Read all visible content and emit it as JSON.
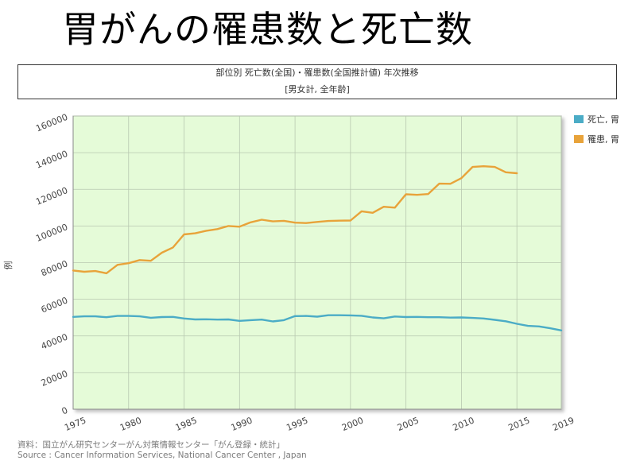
{
  "slide_title": "胃がんの罹患数と死亡数",
  "chart_data": {
    "type": "line",
    "title": "部位別 死亡数(全国)・罹患数(全国推計値) 年次推移",
    "subtitle": "[男女計, 全年齢]",
    "ylabel": "例",
    "xlabel": "",
    "xlim": [
      1975,
      2019
    ],
    "ylim": [
      0,
      160000
    ],
    "yticks": [
      0,
      20000,
      40000,
      60000,
      80000,
      100000,
      120000,
      140000,
      160000
    ],
    "xticks": [
      1975,
      1980,
      1985,
      1990,
      1995,
      2000,
      2005,
      2010,
      2015,
      2019
    ],
    "grid": true,
    "legend_position": "right",
    "plot_background": "#e5fbd8",
    "series": [
      {
        "name": "死亡, 胃",
        "color": "#4bacc6",
        "x": [
          1975,
          1976,
          1977,
          1978,
          1979,
          1980,
          1981,
          1982,
          1983,
          1984,
          1985,
          1986,
          1987,
          1988,
          1989,
          1990,
          1991,
          1992,
          1993,
          1994,
          1995,
          1996,
          1997,
          1998,
          1999,
          2000,
          2001,
          2002,
          2003,
          2004,
          2005,
          2006,
          2007,
          2008,
          2009,
          2010,
          2011,
          2012,
          2013,
          2014,
          2015,
          2016,
          2017,
          2018,
          2019
        ],
        "values": [
          50400,
          50700,
          50700,
          50200,
          50900,
          50900,
          50700,
          49900,
          50300,
          50400,
          49500,
          49000,
          49100,
          48900,
          49000,
          48200,
          48600,
          48900,
          47900,
          48600,
          50800,
          50900,
          50500,
          51300,
          51300,
          51200,
          51000,
          50100,
          49600,
          50600,
          50300,
          50400,
          50200,
          50200,
          50000,
          50100,
          49800,
          49500,
          48800,
          48000,
          46600,
          45500,
          45200,
          44200,
          43000
        ]
      },
      {
        "name": "罹患, 胃",
        "color": "#e8a33a",
        "x": [
          1975,
          1976,
          1977,
          1978,
          1979,
          1980,
          1981,
          1982,
          1983,
          1984,
          1985,
          1986,
          1987,
          1988,
          1989,
          1990,
          1991,
          1992,
          1993,
          1994,
          1995,
          1996,
          1997,
          1998,
          1999,
          2000,
          2001,
          2002,
          2003,
          2004,
          2005,
          2006,
          2007,
          2008,
          2009,
          2010,
          2011,
          2012,
          2013,
          2014,
          2015
        ],
        "values": [
          75700,
          75000,
          75400,
          74200,
          78800,
          79700,
          81400,
          81000,
          85400,
          88300,
          95400,
          96000,
          97400,
          98300,
          100000,
          99600,
          102000,
          103400,
          102500,
          102800,
          101800,
          101600,
          102200,
          102700,
          102900,
          103000,
          108000,
          107200,
          110500,
          110000,
          117300,
          117000,
          117400,
          123100,
          123000,
          126100,
          132200,
          132600,
          132200,
          129300,
          128800
        ]
      }
    ]
  },
  "source": {
    "ja": "資料：国立がん研究センターがん対策情報センター「がん登録・統計」",
    "en": "Source : Cancer Information Services, National Cancer Center , Japan"
  }
}
